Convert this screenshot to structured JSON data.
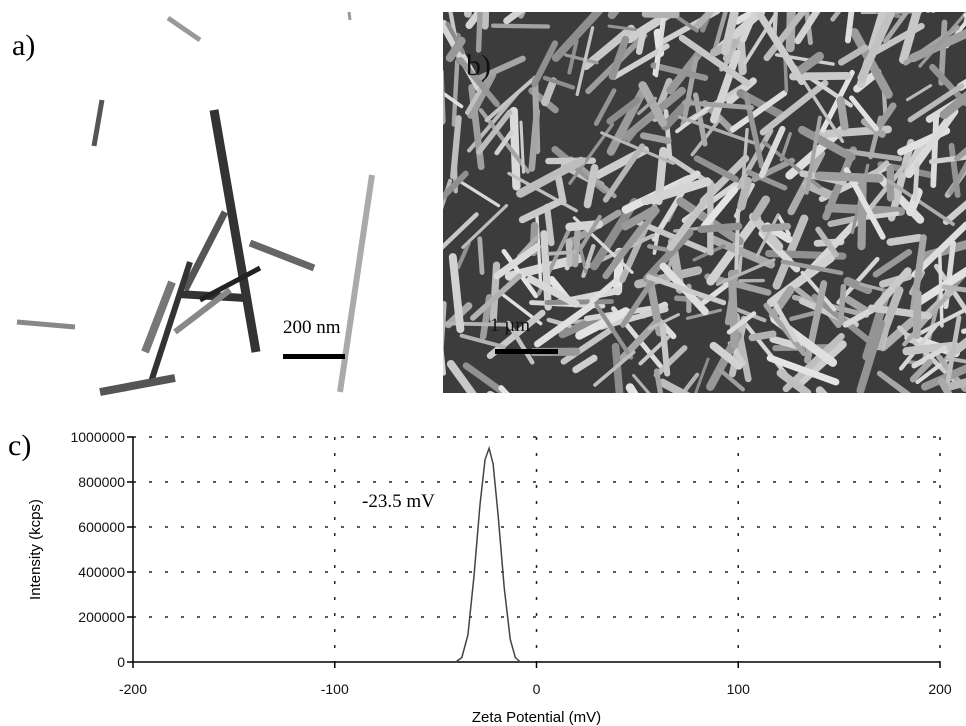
{
  "panels": {
    "a": {
      "label": "a)",
      "scale_bar": "200 nm"
    },
    "b": {
      "label": "b)",
      "scale_bar": "1 µm"
    },
    "c": {
      "label": "c)"
    }
  },
  "chart_data": {
    "type": "line",
    "x_label": "Zeta Potential (mV)",
    "y_label": "Intensity (kcps)",
    "annotation": "-23.5 mV",
    "x": [
      -40,
      -37,
      -34,
      -31,
      -28,
      -25.5,
      -23.5,
      -21.5,
      -19,
      -16,
      -13,
      -10.5,
      -8
    ],
    "series": [
      {
        "color": "#444444",
        "values": [
          0,
          20000,
          120000,
          380000,
          700000,
          900000,
          950000,
          880000,
          650000,
          330000,
          100000,
          20000,
          0
        ]
      }
    ],
    "xlim": [
      -200,
      200
    ],
    "xticks": [
      -200,
      -100,
      0,
      100,
      200
    ],
    "ylim": [
      0,
      1000000
    ],
    "yticks": [
      0,
      200000,
      400000,
      600000,
      800000,
      1000000
    ],
    "grid": true
  }
}
